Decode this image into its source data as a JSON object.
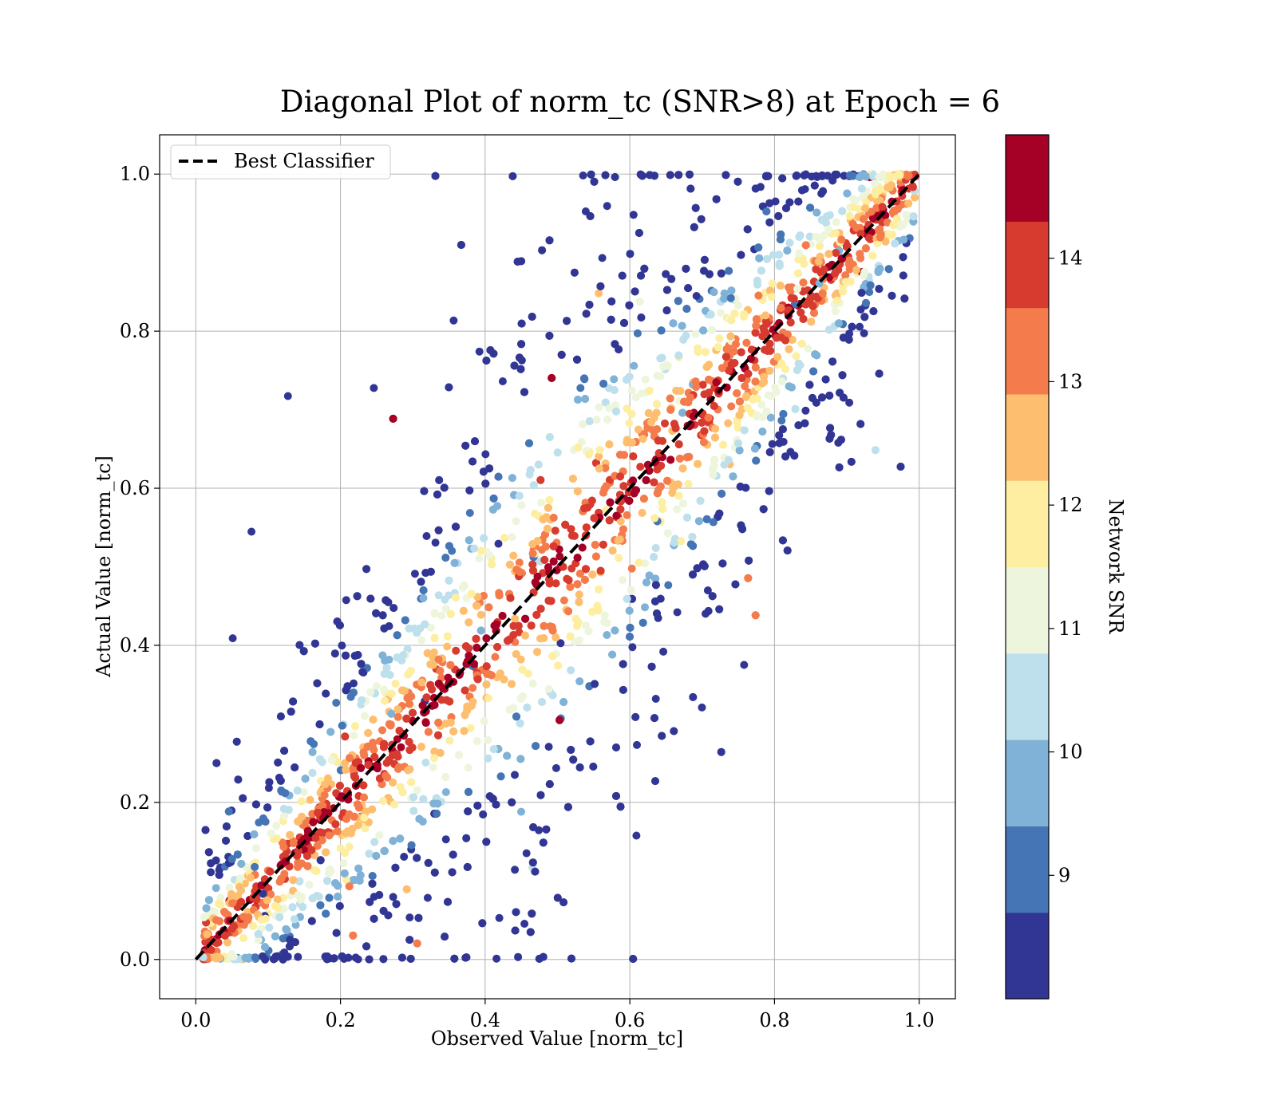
{
  "chart_data": {
    "type": "scatter",
    "title": "Diagonal Plot of norm_tc (SNR>8) at Epoch = 6",
    "xlabel": "Observed Value [norm_tc]",
    "ylabel": "Actual Value [norm_tc]",
    "xlim": [
      -0.05,
      1.05
    ],
    "ylim": [
      -0.05,
      1.05
    ],
    "x_ticks": [
      0.0,
      0.2,
      0.4,
      0.6,
      0.8,
      1.0
    ],
    "y_ticks": [
      0.0,
      0.2,
      0.4,
      0.6,
      0.8,
      1.0
    ],
    "x_tick_labels": [
      "0.0",
      "0.2",
      "0.4",
      "0.6",
      "0.8",
      "1.0"
    ],
    "y_tick_labels": [
      "0.0",
      "0.2",
      "0.4",
      "0.6",
      "0.8",
      "1.0"
    ],
    "grid": true,
    "legend": {
      "position": "upper-left",
      "entries": [
        {
          "label": "Best Classifier",
          "style": "dashed",
          "color": "#000000"
        }
      ]
    },
    "reference_line": {
      "x": [
        0.0,
        1.0
      ],
      "y": [
        0.0,
        1.0
      ]
    },
    "colorbar": {
      "label": "Network SNR",
      "range": [
        8,
        15
      ],
      "ticks": [
        9,
        10,
        11,
        12,
        13,
        14
      ],
      "tick_labels": [
        "9",
        "10",
        "11",
        "12",
        "13",
        "14"
      ],
      "colors": [
        "#313695",
        "#4575b4",
        "#7fb2d6",
        "#bde0ec",
        "#edf6dc",
        "#fdeea1",
        "#fdbf6f",
        "#f47c4c",
        "#d73a2e",
        "#a50026"
      ]
    },
    "point_distribution": {
      "note": "Dense band of points along the diagonal; high-SNR points concentrated near y=x, lower-SNR points more scattered away from the diagonal."
    }
  }
}
